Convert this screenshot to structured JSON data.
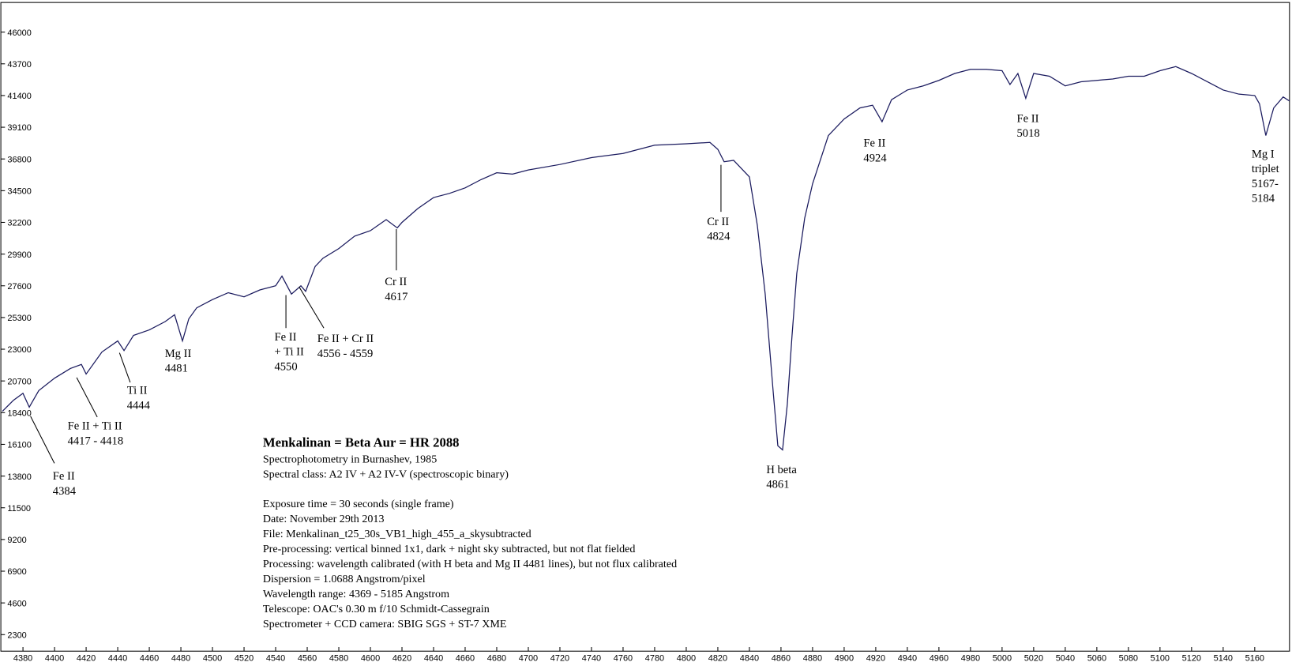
{
  "chart_data": {
    "type": "line",
    "x": [
      4367,
      4374,
      4380,
      4384,
      4390,
      4400,
      4410,
      4417,
      4420,
      4430,
      4440,
      4444,
      4450,
      4460,
      4470,
      4476,
      4481,
      4485,
      4490,
      4500,
      4510,
      4520,
      4530,
      4540,
      4544,
      4550,
      4556,
      4559,
      4565,
      4570,
      4580,
      4590,
      4600,
      4610,
      4617,
      4620,
      4630,
      4640,
      4650,
      4660,
      4670,
      4680,
      4690,
      4700,
      4720,
      4740,
      4760,
      4780,
      4800,
      4815,
      4820,
      4824,
      4830,
      4840,
      4845,
      4850,
      4855,
      4858,
      4861,
      4864,
      4867,
      4870,
      4875,
      4880,
      4890,
      4900,
      4910,
      4918,
      4924,
      4930,
      4940,
      4950,
      4960,
      4970,
      4980,
      4990,
      5000,
      5005,
      5010,
      5015,
      5020,
      5030,
      5040,
      5050,
      5060,
      5070,
      5080,
      5090,
      5100,
      5110,
      5120,
      5130,
      5140,
      5150,
      5160,
      5163,
      5167,
      5172,
      5178,
      5182
    ],
    "values": [
      18500,
      19300,
      19800,
      18800,
      20000,
      20900,
      21600,
      21900,
      21200,
      22800,
      23600,
      22900,
      24000,
      24400,
      25000,
      25500,
      23600,
      25200,
      26000,
      26600,
      27100,
      26800,
      27300,
      27600,
      28300,
      27000,
      27600,
      27200,
      29000,
      29600,
      30300,
      31200,
      31600,
      32400,
      31800,
      32200,
      33200,
      34000,
      34300,
      34700,
      35300,
      35800,
      35700,
      36000,
      36400,
      36900,
      37200,
      37800,
      37900,
      38000,
      37500,
      36600,
      36700,
      35500,
      32000,
      27000,
      20000,
      16000,
      15700,
      19000,
      24000,
      28500,
      32500,
      35000,
      38500,
      39700,
      40500,
      40700,
      39500,
      41100,
      41800,
      42100,
      42500,
      43000,
      43300,
      43300,
      43200,
      42200,
      43000,
      41200,
      43000,
      42800,
      42100,
      42400,
      42500,
      42600,
      42800,
      42800,
      43200,
      43500,
      43000,
      42400,
      41800,
      41500,
      41400,
      40800,
      38500,
      40500,
      41300,
      41000
    ],
    "color": "#1a1a5e",
    "xlim": [
      4366,
      5182
    ],
    "ylim": [
      1100,
      48150
    ],
    "xticks": [
      4380,
      4400,
      4420,
      4440,
      4460,
      4480,
      4500,
      4520,
      4540,
      4560,
      4580,
      4600,
      4620,
      4640,
      4660,
      4680,
      4700,
      4720,
      4740,
      4760,
      4780,
      4800,
      4820,
      4840,
      4860,
      4880,
      4900,
      4920,
      4940,
      4960,
      4980,
      5000,
      5020,
      5040,
      5060,
      5080,
      5100,
      5120,
      5140,
      5160
    ],
    "yticks": [
      2300,
      4600,
      6900,
      9200,
      11500,
      13800,
      16100,
      18400,
      20700,
      23000,
      25300,
      27600,
      29900,
      32200,
      34500,
      36800,
      39100,
      41400,
      43700,
      46000
    ],
    "annotations": [
      {
        "lines": [
          "Fe II",
          "4384"
        ]
      },
      {
        "lines": [
          "Fe II + Ti II",
          "4417 - 4418"
        ]
      },
      {
        "lines": [
          "Ti II",
          "4444"
        ]
      },
      {
        "lines": [
          "Mg II",
          "4481"
        ]
      },
      {
        "lines": [
          "Fe II",
          "+ Ti II",
          "4550"
        ]
      },
      {
        "lines": [
          "Fe II + Cr II",
          "4556 - 4559"
        ]
      },
      {
        "lines": [
          "Cr II",
          "4617"
        ]
      },
      {
        "lines": [
          "Cr II",
          "4824"
        ]
      },
      {
        "lines": [
          "H beta",
          "4861"
        ]
      },
      {
        "lines": [
          "Fe II",
          "4924"
        ]
      },
      {
        "lines": [
          "Fe II",
          "5018"
        ]
      },
      {
        "lines": [
          "Mg I",
          "triplet",
          "5167-",
          "5184"
        ]
      }
    ],
    "info_title": "Menkalinan = Beta Aur = HR 2088",
    "info_lines": [
      "Spectrophotometry in Burnashev, 1985",
      "Spectral class: A2 IV + A2 IV-V  (spectroscopic binary)",
      "Exposure time = 30 seconds (single frame)",
      "Date: November 29th 2013",
      "File: Menkalinan_t25_30s_VB1_high_455_a_skysubtracted",
      "Pre-processing: vertical binned 1x1, dark + night sky subtracted, but not flat fielded",
      "Processing: wavelength calibrated (with H beta and Mg II 4481 lines), but not flux calibrated",
      "Dispersion = 1.0688 Angstrom/pixel",
      "Wavelength range: 4369 - 5185 Angstrom",
      "Telescope: OAC's 0.30 m f/10 Schmidt-Cassegrain",
      "Spectrometer + CCD camera: SBIG SGS + ST-7 XME"
    ]
  }
}
